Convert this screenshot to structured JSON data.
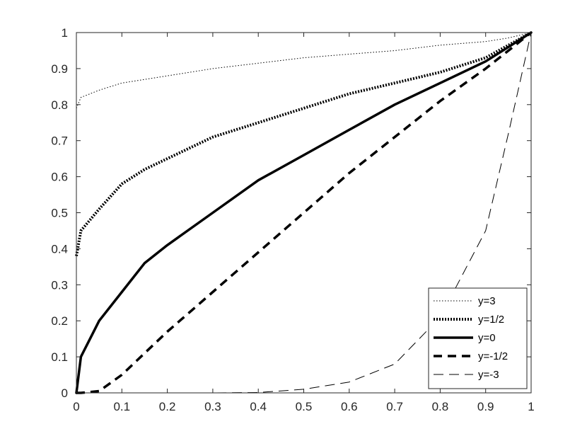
{
  "chart_data": {
    "type": "line",
    "title": "",
    "xlabel": "",
    "ylabel": "",
    "xlim": [
      0,
      1
    ],
    "ylim": [
      0,
      1
    ],
    "x_ticks": [
      "0",
      "0.1",
      "0.2",
      "0.3",
      "0.4",
      "0.5",
      "0.6",
      "0.7",
      "0.8",
      "0.9",
      "1"
    ],
    "y_ticks": [
      "0",
      "0.1",
      "0.2",
      "0.3",
      "0.4",
      "0.5",
      "0.6",
      "0.7",
      "0.8",
      "0.9",
      "1"
    ],
    "grid": false,
    "legend_position": "bottom-right",
    "x": [
      0,
      0.01,
      0.05,
      0.1,
      0.15,
      0.2,
      0.3,
      0.4,
      0.5,
      0.6,
      0.7,
      0.8,
      0.9,
      0.95,
      1
    ],
    "series": [
      {
        "name": "y=3",
        "style": "dotted-thin",
        "color": "#000000",
        "values": [
          0.79,
          0.82,
          0.84,
          0.86,
          0.87,
          0.88,
          0.9,
          0.915,
          0.93,
          0.94,
          0.95,
          0.965,
          0.975,
          0.985,
          1.0
        ]
      },
      {
        "name": "y=1/2",
        "style": "dotted-thick",
        "color": "#000000",
        "values": [
          0.38,
          0.45,
          0.51,
          0.58,
          0.62,
          0.65,
          0.71,
          0.75,
          0.79,
          0.83,
          0.86,
          0.89,
          0.93,
          0.965,
          1.0
        ]
      },
      {
        "name": "y=0",
        "style": "solid",
        "color": "#000000",
        "values": [
          0.0,
          0.1,
          0.2,
          0.28,
          0.36,
          0.41,
          0.5,
          0.59,
          0.66,
          0.73,
          0.8,
          0.86,
          0.92,
          0.96,
          1.0
        ]
      },
      {
        "name": "y=-1/2",
        "style": "dashed-thick",
        "color": "#000000",
        "values": [
          0.0,
          0.0,
          0.005,
          0.05,
          0.11,
          0.17,
          0.28,
          0.39,
          0.5,
          0.61,
          0.71,
          0.81,
          0.9,
          0.95,
          1.0
        ]
      },
      {
        "name": "y=-3",
        "style": "dashed-thin",
        "color": "#000000",
        "values": [
          0.0,
          0.0,
          0.0,
          0.0,
          0.0,
          0.0,
          0.0,
          0.001,
          0.01,
          0.03,
          0.08,
          0.21,
          0.45,
          0.72,
          1.0
        ]
      }
    ]
  }
}
